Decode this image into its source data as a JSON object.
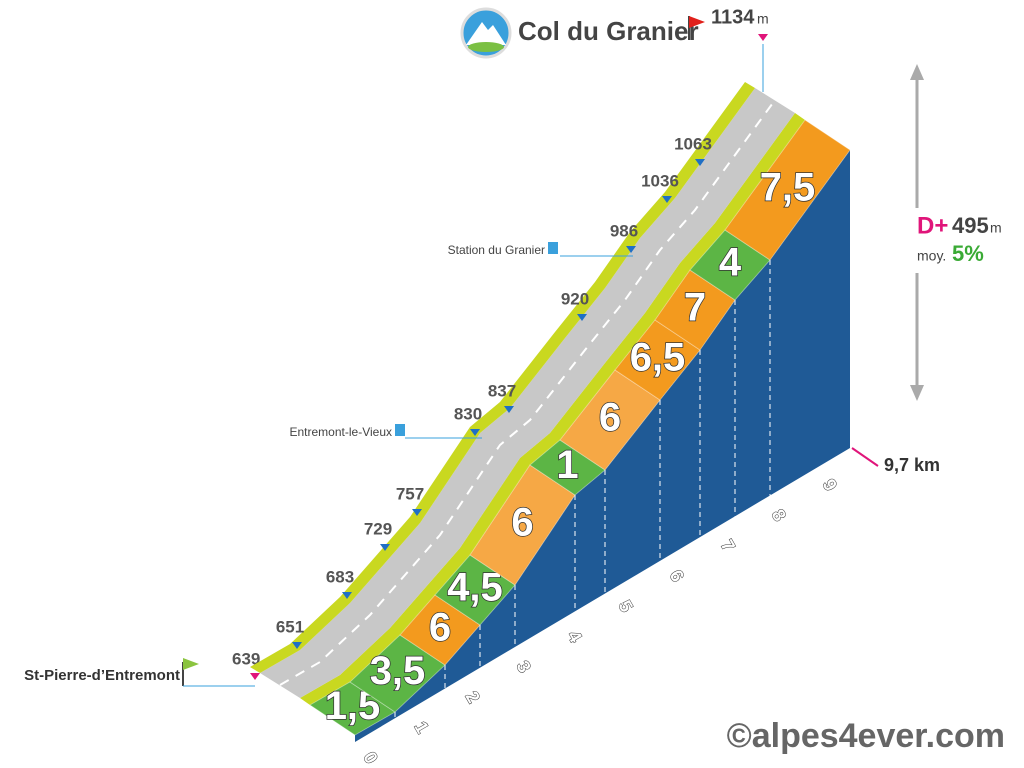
{
  "summit": {
    "name": "Col du Granier",
    "altitude": "1134",
    "unit": "m"
  },
  "start": {
    "name": "St-Pierre-d’Entremont",
    "altitude": "639"
  },
  "stats": {
    "gain_label": "D+",
    "gain": "495",
    "gain_unit": "m",
    "avg_label": "moy.",
    "avg": "5%"
  },
  "distance": "9,7 km",
  "altitudes": [
    "651",
    "683",
    "729",
    "757",
    "830",
    "837",
    "920",
    "986",
    "1036",
    "1063"
  ],
  "places": [
    "Entremont-le-Vieux",
    "Station du Granier"
  ],
  "gradients": [
    "1,5",
    "3,5",
    "6",
    "4,5",
    "6",
    "1",
    "6",
    "6,5",
    "7",
    "4",
    "7,5"
  ],
  "km_ticks": [
    "0",
    "1",
    "2",
    "3",
    "4",
    "5",
    "6",
    "7",
    "8",
    "9"
  ],
  "credit": "©alpes4ever.com"
}
